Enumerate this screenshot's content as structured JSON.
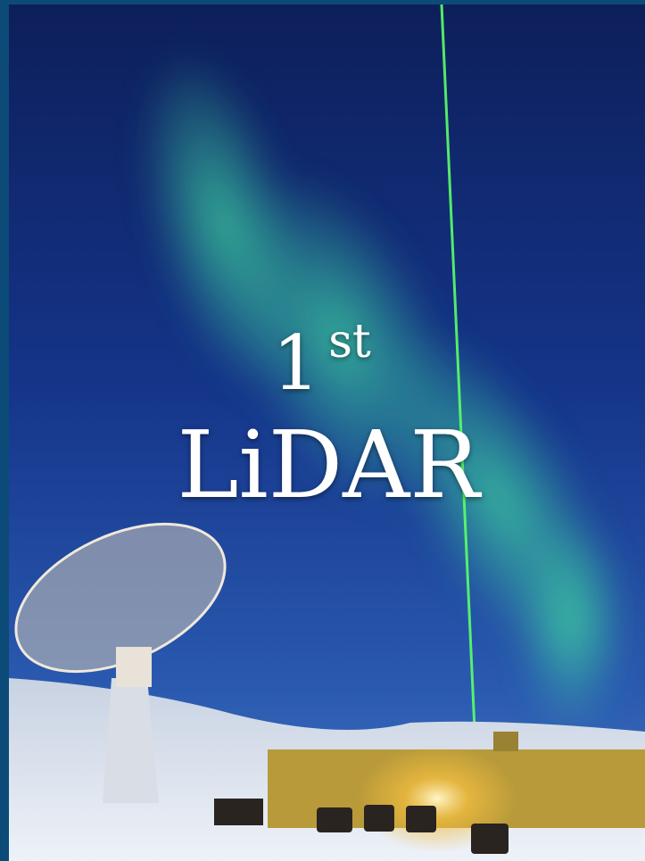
{
  "title": {
    "number": "1",
    "suffix": "st",
    "word": "LiDAR"
  }
}
